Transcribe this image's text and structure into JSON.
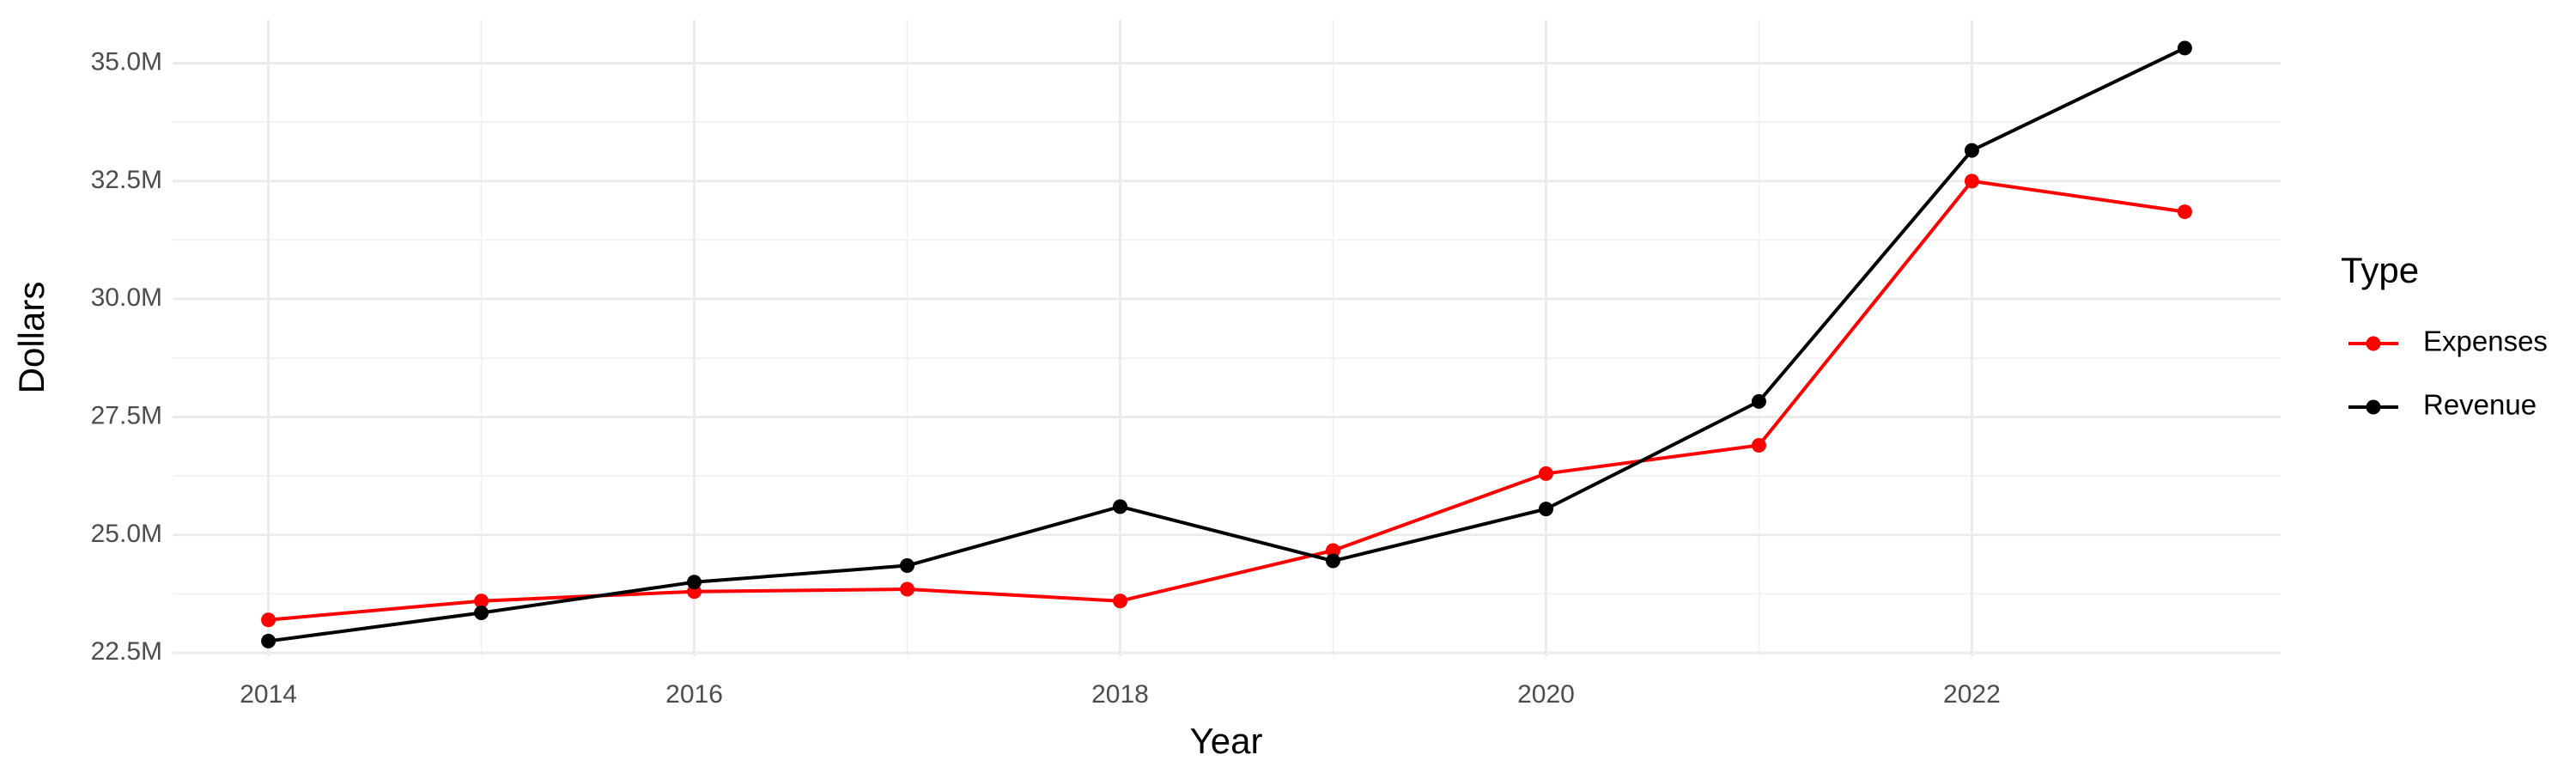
{
  "chart_data": {
    "type": "line",
    "x_label": "Year",
    "y_label": "Dollars",
    "legend_title": "Type",
    "legend": "right",
    "grid": true,
    "minor_grid": true,
    "x": [
      2014,
      2015,
      2016,
      2017,
      2018,
      2019,
      2020,
      2021,
      2022,
      2023
    ],
    "series": [
      {
        "name": "Expenses",
        "color": "#ff0000",
        "values": [
          23200000,
          23600000,
          23800000,
          23850000,
          23600000,
          24670000,
          26300000,
          26900000,
          32500000,
          31850000
        ]
      },
      {
        "name": "Revenue",
        "color": "#000000",
        "values": [
          22750000,
          23350000,
          24000000,
          24350000,
          25600000,
          24450000,
          25550000,
          27830000,
          33150000,
          35320000
        ]
      }
    ],
    "xlim": [
      2013.55,
      2023.45
    ],
    "xticks": [
      2014,
      2016,
      2018,
      2020,
      2022
    ],
    "ylim": [
      22430000,
      35920000
    ],
    "yticks": [
      {
        "value": 22500000,
        "label": "22.5M"
      },
      {
        "value": 25000000,
        "label": "25.0M"
      },
      {
        "value": 27500000,
        "label": "27.5M"
      },
      {
        "value": 30000000,
        "label": "30.0M"
      },
      {
        "value": 32500000,
        "label": "32.5M"
      },
      {
        "value": 35000000,
        "label": "35.0M"
      }
    ]
  }
}
